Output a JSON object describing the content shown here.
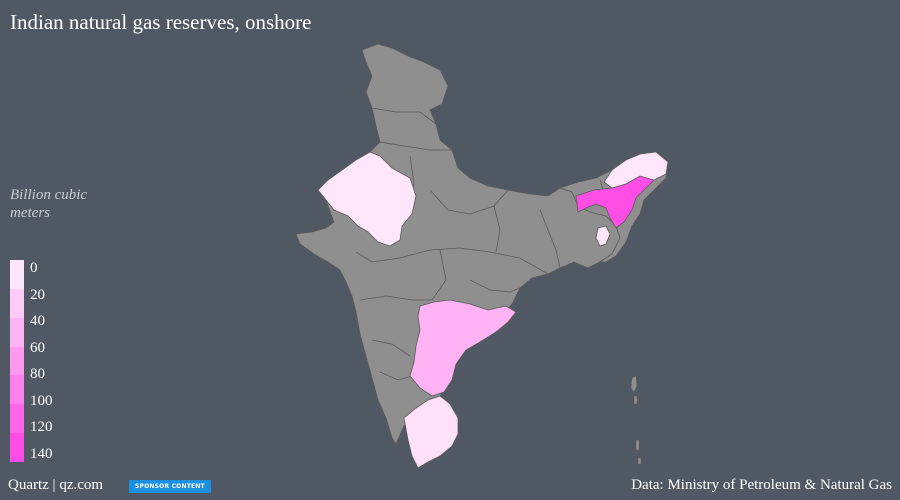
{
  "title": "Indian natural gas reserves, onshore",
  "legend": {
    "title": "Billion cubic meters",
    "ticks": [
      "0",
      "20",
      "40",
      "60",
      "80",
      "100",
      "120",
      "140"
    ],
    "colors": [
      "#ffe6fb",
      "#ffccf8",
      "#ffb3f4",
      "#ff99f0",
      "#ff80ed",
      "#ff66e9",
      "#ff4de6"
    ]
  },
  "map_colors": {
    "no_data": "#8f8f8f",
    "border": "#5a5a5a"
  },
  "regions": [
    {
      "name": "Rajasthan",
      "color": "#ffe6fb"
    },
    {
      "name": "Andhra Pradesh",
      "color": "#ffb3f4"
    },
    {
      "name": "Tamil Nadu",
      "color": "#ffe0f9"
    },
    {
      "name": "Assam",
      "color": "#ff4de6"
    },
    {
      "name": "Arunachal Pradesh",
      "color": "#ffe6fb"
    },
    {
      "name": "Tripura",
      "color": "#ffe6fb"
    }
  ],
  "footer": {
    "brand": "Quartz | qz.com",
    "sponsor": "SPONSOR CONTENT",
    "source": "Data: Ministry of Petroleum & Natural Gas"
  }
}
